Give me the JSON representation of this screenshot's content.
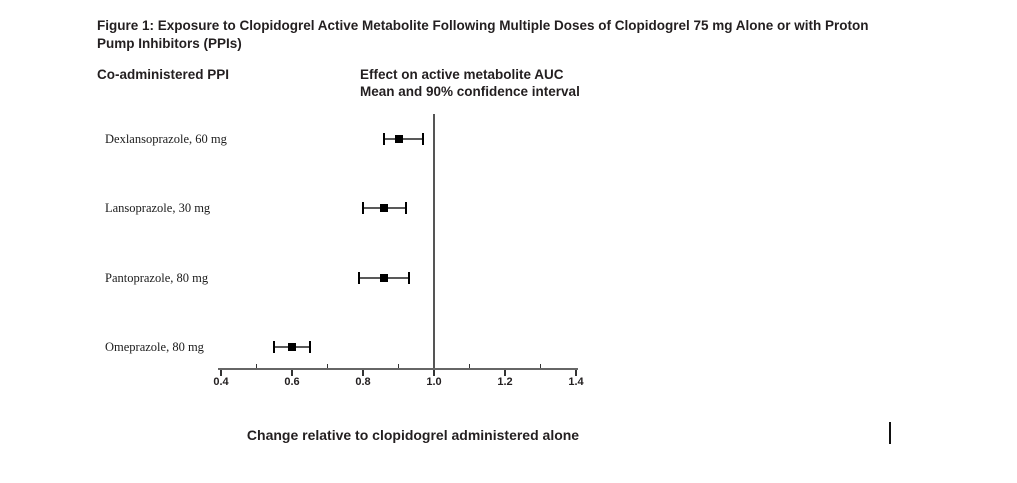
{
  "figure": {
    "title": "Figure 1: Exposure to Clopidogrel Active Metabolite Following Multiple Doses of Clopidogrel 75 mg Alone or with Proton Pump Inhibitors (PPIs)",
    "left_column_header": "Co-administered PPI",
    "right_column_header_line1": "Effect on active metabolite AUC",
    "right_column_header_line2": "Mean and 90% confidence interval",
    "x_axis_label": "Change relative to clopidogrel administered alone"
  },
  "chart_data": {
    "type": "scatter",
    "subtype": "forest-plot",
    "title": "Figure 1: Exposure to Clopidogrel Active Metabolite Following Multiple Doses of Clopidogrel 75 mg Alone or with Proton Pump Inhibitors (PPIs)",
    "xlabel": "Change relative to clopidogrel administered alone",
    "ylabel": "Co-administered PPI",
    "xlim": [
      0.4,
      1.4
    ],
    "x_ticks": [
      0.4,
      0.6,
      0.8,
      1.0,
      1.2,
      1.4
    ],
    "x_minor_ticks": [
      0.5,
      0.7,
      0.9,
      1.1,
      1.3
    ],
    "reference_line_x": 1.0,
    "grid": false,
    "legend": null,
    "rows": [
      {
        "label": "Dexlansoprazole, 60 mg",
        "mean": 0.9,
        "ci_low": 0.86,
        "ci_high": 0.97
      },
      {
        "label": "Lansoprazole, 30 mg",
        "mean": 0.86,
        "ci_low": 0.8,
        "ci_high": 0.92
      },
      {
        "label": "Pantoprazole, 80 mg",
        "mean": 0.86,
        "ci_low": 0.79,
        "ci_high": 0.93
      },
      {
        "label": "Omeprazole, 80 mg",
        "mean": 0.6,
        "ci_low": 0.55,
        "ci_high": 0.65
      }
    ],
    "colors": {
      "marker": "#000000",
      "ci_cap": "#000000",
      "ci_line": "#595959",
      "reference_line": "#555555",
      "axis_line": "#666666",
      "tick": "#333333",
      "text": "#231f20"
    }
  }
}
